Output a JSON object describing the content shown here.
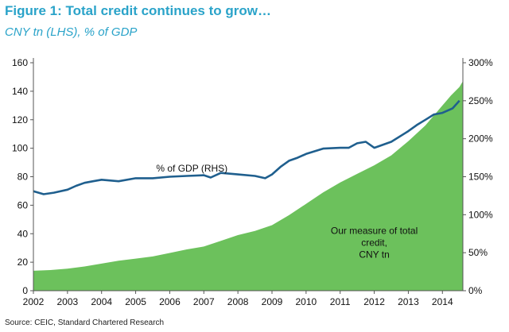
{
  "title": "Figure 1: Total credit continues to grow…",
  "subtitle": "CNY tn (LHS), % of GDP",
  "source": "Source: CEIC, Standard Chartered Research",
  "chart_data": {
    "type": "area",
    "x_ticks": [
      "2002",
      "2003",
      "2004",
      "2005",
      "2006",
      "2007",
      "2008",
      "2009",
      "2010",
      "2011",
      "2012",
      "2013",
      "2014"
    ],
    "x_range": [
      2002,
      2014.6
    ],
    "y_left": {
      "range": [
        0,
        160
      ],
      "ticks": [
        "0",
        "20",
        "40",
        "60",
        "80",
        "100",
        "120",
        "140",
        "160"
      ]
    },
    "y_right": {
      "range": [
        0,
        300
      ],
      "ticks": [
        "0%",
        "50%",
        "100%",
        "150%",
        "200%",
        "250%",
        "300%"
      ]
    },
    "grid": false,
    "series": [
      {
        "label": "Our measure of total credit, CNY tn",
        "label_lines": [
          "Our measure of total",
          "credit,",
          "CNY tn"
        ],
        "type": "area",
        "axis": "left",
        "color": "#6cc15c",
        "x": [
          2002,
          2002.5,
          2003,
          2003.5,
          2004,
          2004.5,
          2005,
          2005.5,
          2006,
          2006.5,
          2007,
          2007.5,
          2008,
          2008.5,
          2009,
          2009.5,
          2010,
          2010.5,
          2011,
          2011.5,
          2012,
          2012.5,
          2013,
          2013.5,
          2014,
          2014.25,
          2014.5,
          2014.6
        ],
        "y": [
          14,
          14.5,
          15.5,
          17,
          19,
          21,
          22.5,
          24,
          26.5,
          29,
          31,
          35,
          39,
          42,
          46,
          53,
          61,
          69,
          76,
          82,
          88,
          95,
          105,
          116,
          130,
          137,
          143,
          147
        ]
      },
      {
        "label": "% of GDP (RHS)",
        "type": "line",
        "axis": "right",
        "color": "#1f5f8e",
        "x": [
          2002,
          2002.3,
          2002.6,
          2003,
          2003.25,
          2003.5,
          2003.75,
          2004,
          2004.5,
          2005,
          2005.5,
          2006,
          2006.5,
          2007,
          2007.2,
          2007.5,
          2008,
          2008.5,
          2008.8,
          2009,
          2009.25,
          2009.5,
          2009.75,
          2010,
          2010.5,
          2011,
          2011.25,
          2011.5,
          2011.75,
          2012,
          2012.5,
          2013,
          2013.25,
          2013.5,
          2013.75,
          2014,
          2014.3,
          2014.5
        ],
        "y": [
          131,
          127,
          129,
          133,
          138,
          142,
          144,
          146,
          144,
          148,
          148,
          150,
          151,
          152,
          149,
          155,
          153,
          151,
          148,
          153,
          163,
          171,
          175,
          180,
          187,
          188,
          188,
          194,
          196,
          188,
          196,
          210,
          218,
          225,
          232,
          234,
          240,
          250
        ]
      }
    ]
  }
}
